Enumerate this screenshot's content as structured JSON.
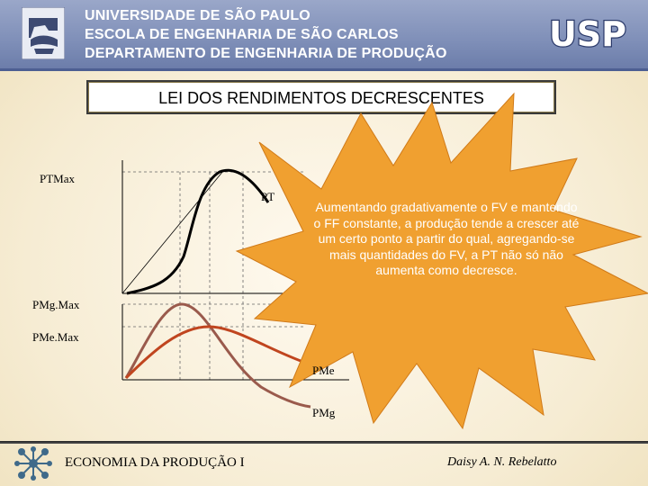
{
  "header": {
    "line1": "UNIVERSIDADE DE SÃO PAULO",
    "line2": "ESCOLA DE ENGENHARIA DE SÃO CARLOS",
    "line3": "DEPARTAMENTO DE ENGENHARIA DE PRODUÇÃO",
    "logo_left_icon": "engineering-school-logo",
    "logo_right_text": "USP"
  },
  "slide": {
    "title": "LEI DOS RENDIMENTOS DECRESCENTES",
    "labels": {
      "ptmax": "PTMax",
      "pt": "PT",
      "pmgmax": "PMg.Max",
      "pmemax": "PMe.Max",
      "pme": "PMe",
      "pmg": "PMg"
    },
    "callout": "Aumentando gradativamente o FV e mantendo o FF constante, a produção tende a crescer até um certo ponto a partir do qual, agregando-se mais quantidades do FV, a PT não só não aumenta como decresce."
  },
  "colors": {
    "header_bg": "#8392bc",
    "burst": "#f0a030",
    "pt_curve": "#000000",
    "pme_curve": "#c0451f",
    "pmg_curve": "#9a5a4c"
  },
  "footer": {
    "left": "ECONOMIA DA PRODUÇÃO I",
    "right": "Daisy A. N. Rebelatto",
    "logo_icon": "university-network-logo"
  }
}
